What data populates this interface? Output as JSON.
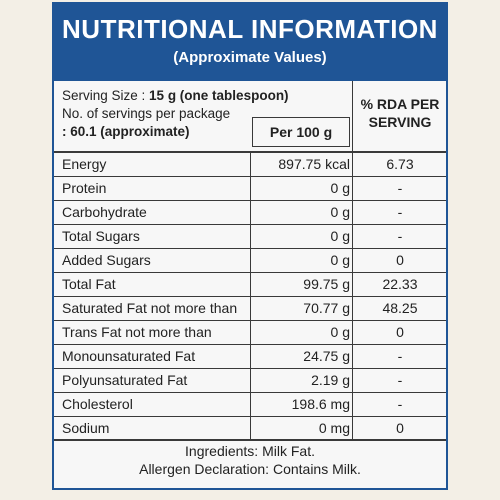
{
  "header": {
    "title": "NUTRITIONAL INFORMATION",
    "subtitle": "(Approximate Values)"
  },
  "serving": {
    "size_label": "Serving Size : ",
    "size_value": "15 g (one tablespoon)",
    "count_label": "No. of servings per package",
    "count_value": ": 60.1 (approximate)"
  },
  "columns": {
    "per100": "Per 100 g",
    "rda_line1": "% RDA PER",
    "rda_line2": "SERVING"
  },
  "rows": [
    {
      "name": "Energy",
      "value": "897.75 kcal",
      "rda": "6.73"
    },
    {
      "name": "Protein",
      "value": "0 g",
      "rda": "-"
    },
    {
      "name": "Carbohydrate",
      "value": "0 g",
      "rda": "-"
    },
    {
      "name": "Total Sugars",
      "value": "0 g",
      "rda": "-"
    },
    {
      "name": "Added Sugars",
      "value": "0 g",
      "rda": "0"
    },
    {
      "name": "Total Fat",
      "value": "99.75 g",
      "rda": "22.33"
    },
    {
      "name": "Saturated Fat not more than",
      "value": "70.77 g",
      "rda": "48.25"
    },
    {
      "name": "Trans Fat not more than",
      "value": "0 g",
      "rda": "0"
    },
    {
      "name": "Monounsaturated Fat",
      "value": "24.75 g",
      "rda": "-"
    },
    {
      "name": "Polyunsaturated Fat",
      "value": "2.19 g",
      "rda": "-"
    },
    {
      "name": "Cholesterol",
      "value": "198.6 mg",
      "rda": "-"
    },
    {
      "name": "Sodium",
      "value": "0 mg",
      "rda": "0"
    }
  ],
  "footer": {
    "ingredients": "Ingredients: Milk Fat.",
    "allergen": "Allergen Declaration: Contains Milk."
  },
  "colors": {
    "header_bg": "#1f5596",
    "page_bg": "#f3efe6"
  }
}
